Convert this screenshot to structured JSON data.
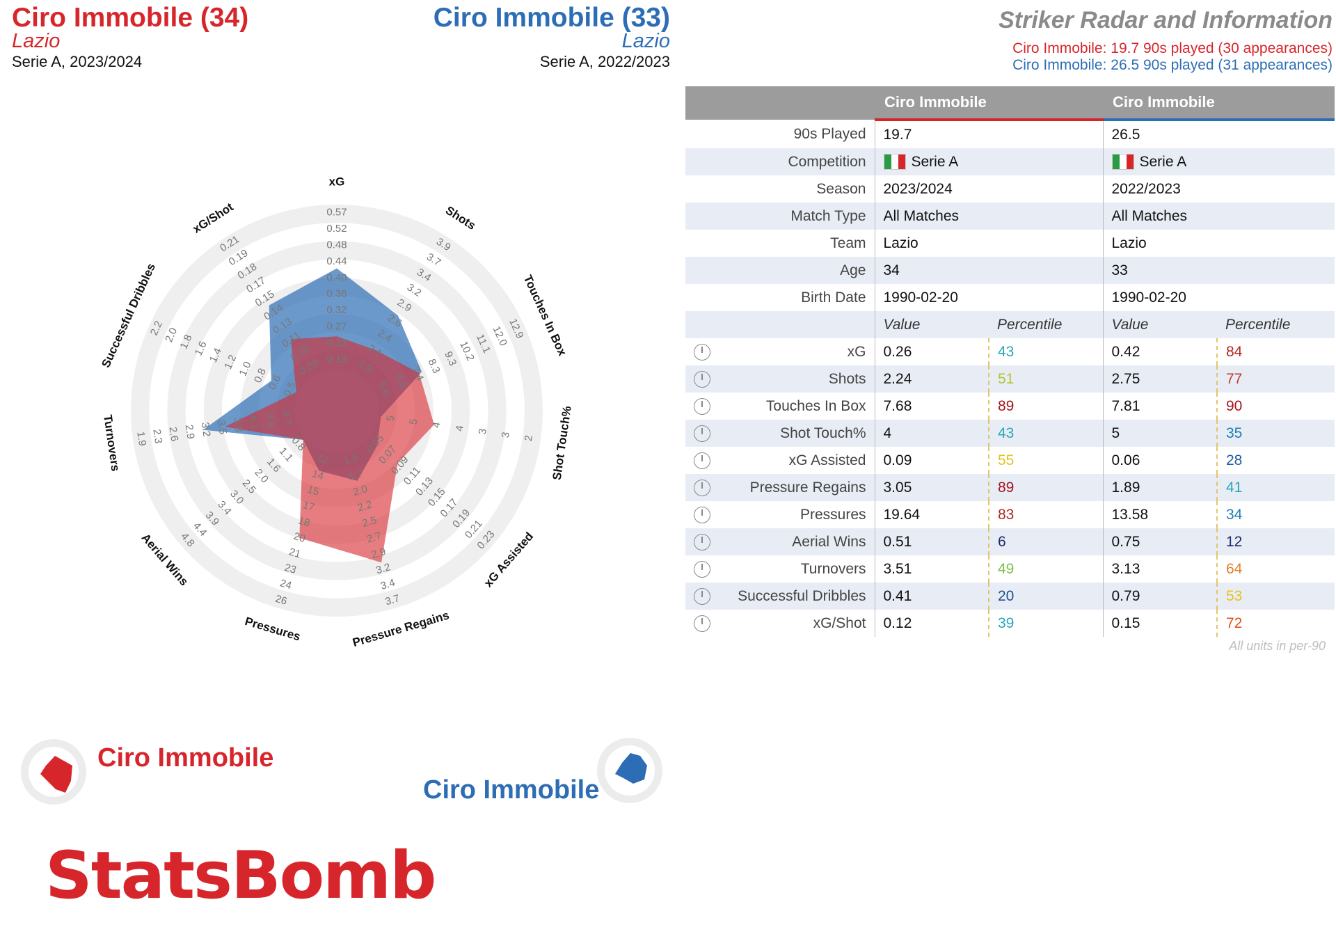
{
  "header": {
    "p1": {
      "name": "Ciro Immobile (34)",
      "team": "Lazio",
      "competition": "Serie A, 2023/2024"
    },
    "p2": {
      "name": "Ciro Immobile (33)",
      "team": "Lazio",
      "competition": "Serie A, 2022/2023"
    }
  },
  "right_header": {
    "title": "Striker Radar and Information",
    "line1": "Ciro Immobile: 19.7 90s played (30 appearances)",
    "line2": "Ciro Immobile: 26.5 90s played (31 appearances)"
  },
  "colors": {
    "p1": "#d7262b",
    "p2": "#2d6db5",
    "overlap": "#6a62a0"
  },
  "chart_data": {
    "type": "radar",
    "axes": [
      {
        "name": "xG",
        "ticks": [
          "0.19",
          "0.23",
          "0.27",
          "0.32",
          "0.36",
          "0.40",
          "0.44",
          "0.48",
          "0.52",
          "0.57"
        ]
      },
      {
        "name": "Shots",
        "ticks": [
          "1.9",
          "2.1",
          "2.4",
          "2.6",
          "2.9",
          "3.2",
          "3.4",
          "3.7",
          "3.9"
        ]
      },
      {
        "name": "Touches In Box",
        "ticks": [
          "5.6",
          "6.5",
          "7.4",
          "8.3",
          "9.3",
          "10.2",
          "11.1",
          "12.0",
          "12.9"
        ]
      },
      {
        "name": "Shot Touch%",
        "ticks": [
          "5",
          "5",
          "4",
          "4",
          "3",
          "3",
          "2"
        ]
      },
      {
        "name": "xG Assisted",
        "ticks": [
          "0.05",
          "0.07",
          "0.09",
          "0.11",
          "0.13",
          "0.15",
          "0.17",
          "0.19",
          "0.21",
          "0.23"
        ]
      },
      {
        "name": "Pressure Regains",
        "ticks": [
          "1.5",
          "1.7",
          "2.0",
          "2.2",
          "2.5",
          "2.7",
          "2.9",
          "3.2",
          "3.4",
          "3.7"
        ]
      },
      {
        "name": "Pressures",
        "ticks": [
          "12",
          "14",
          "15",
          "17",
          "18",
          "20",
          "21",
          "23",
          "24",
          "26"
        ]
      },
      {
        "name": "Aerial Wins",
        "ticks": [
          "0.8",
          "1.1",
          "1.6",
          "2.0",
          "2.5",
          "3.0",
          "3.4",
          "3.9",
          "4.4",
          "4.8"
        ]
      },
      {
        "name": "Turnovers",
        "ticks": [
          "4.7",
          "4.4",
          "4.1",
          "3.8",
          "3.5",
          "3.2",
          "2.9",
          "2.6",
          "2.3",
          "1.9"
        ]
      },
      {
        "name": "Successful Dribbles",
        "ticks": [
          "0.5",
          "0.6",
          "0.8",
          "1.0",
          "1.2",
          "1.4",
          "1.6",
          "1.8",
          "2.0",
          "2.2"
        ]
      },
      {
        "name": "xG/Shot",
        "ticks": [
          "0.09",
          "0.10",
          "0.11",
          "0.13",
          "0.14",
          "0.15",
          "0.17",
          "0.18",
          "0.19",
          "0.21"
        ]
      }
    ],
    "series": [
      {
        "name": "Ciro Immobile",
        "season": "2023/2024",
        "values": [
          0.26,
          2.24,
          7.68,
          4,
          0.09,
          3.05,
          19.64,
          0.51,
          3.51,
          0.41,
          0.12
        ]
      },
      {
        "name": "Ciro Immobile",
        "season": "2022/2023",
        "values": [
          0.42,
          2.75,
          7.81,
          5,
          0.06,
          1.89,
          13.58,
          0.75,
          3.13,
          0.79,
          0.15
        ]
      }
    ]
  },
  "table": {
    "headers": [
      "",
      "Ciro Immobile",
      "Ciro Immobile"
    ],
    "info_rows": [
      {
        "label": "90s Played",
        "p1": "19.7",
        "p2": "26.5"
      },
      {
        "label": "Competition",
        "p1": "Serie A",
        "p2": "Serie A"
      },
      {
        "label": "Season",
        "p1": "2023/2024",
        "p2": "2022/2023"
      },
      {
        "label": "Match Type",
        "p1": "All Matches",
        "p2": "All Matches"
      },
      {
        "label": "Team",
        "p1": "Lazio",
        "p2": "Lazio"
      },
      {
        "label": "Age",
        "p1": "34",
        "p2": "33"
      },
      {
        "label": "Birth Date",
        "p1": "1990-02-20",
        "p2": "1990-02-20"
      }
    ],
    "subhead": {
      "value": "Value",
      "percentile": "Percentile"
    },
    "metric_rows": [
      {
        "label": "xG",
        "v1": "0.26",
        "p1": "43",
        "c1": "#2aa6b8",
        "v2": "0.42",
        "p2": "84",
        "c2": "#b3261e"
      },
      {
        "label": "Shots",
        "v1": "2.24",
        "p1": "51",
        "c1": "#b5c430",
        "v2": "2.75",
        "p2": "77",
        "c2": "#c0392b"
      },
      {
        "label": "Touches In Box",
        "v1": "7.68",
        "p1": "89",
        "c1": "#a5131f",
        "v2": "7.81",
        "p2": "90",
        "c2": "#a5131f"
      },
      {
        "label": "Shot Touch%",
        "v1": "4",
        "p1": "43",
        "c1": "#2aa6b8",
        "v2": "5",
        "p2": "35",
        "c2": "#1c7fb0"
      },
      {
        "label": "xG Assisted",
        "v1": "0.09",
        "p1": "55",
        "c1": "#e8c21a",
        "v2": "0.06",
        "p2": "28",
        "c2": "#1f5f9e"
      },
      {
        "label": "Pressure Regains",
        "v1": "3.05",
        "p1": "89",
        "c1": "#a5131f",
        "v2": "1.89",
        "p2": "41",
        "c2": "#2aa6b8"
      },
      {
        "label": "Pressures",
        "v1": "19.64",
        "p1": "83",
        "c1": "#b3261e",
        "v2": "13.58",
        "p2": "34",
        "c2": "#1c7fb0"
      },
      {
        "label": "Aerial Wins",
        "v1": "0.51",
        "p1": "6",
        "c1": "#1b2a6b",
        "v2": "0.75",
        "p2": "12",
        "c2": "#1b2a6b"
      },
      {
        "label": "Turnovers",
        "v1": "3.51",
        "p1": "49",
        "c1": "#7cbf4a",
        "v2": "3.13",
        "p2": "64",
        "c2": "#e0812a"
      },
      {
        "label": "Successful Dribbles",
        "v1": "0.41",
        "p1": "20",
        "c1": "#1f4f8e",
        "v2": "0.79",
        "p2": "53",
        "c2": "#e8c21a"
      },
      {
        "label": "xG/Shot",
        "v1": "0.12",
        "p1": "39",
        "c1": "#2aa6b8",
        "v2": "0.15",
        "p2": "72",
        "c2": "#d9541c"
      }
    ],
    "units_note": "All units in per-90"
  },
  "legend": {
    "p1": "Ciro Immobile",
    "p2": "Ciro Immobile"
  },
  "brand": "StatsBomb"
}
